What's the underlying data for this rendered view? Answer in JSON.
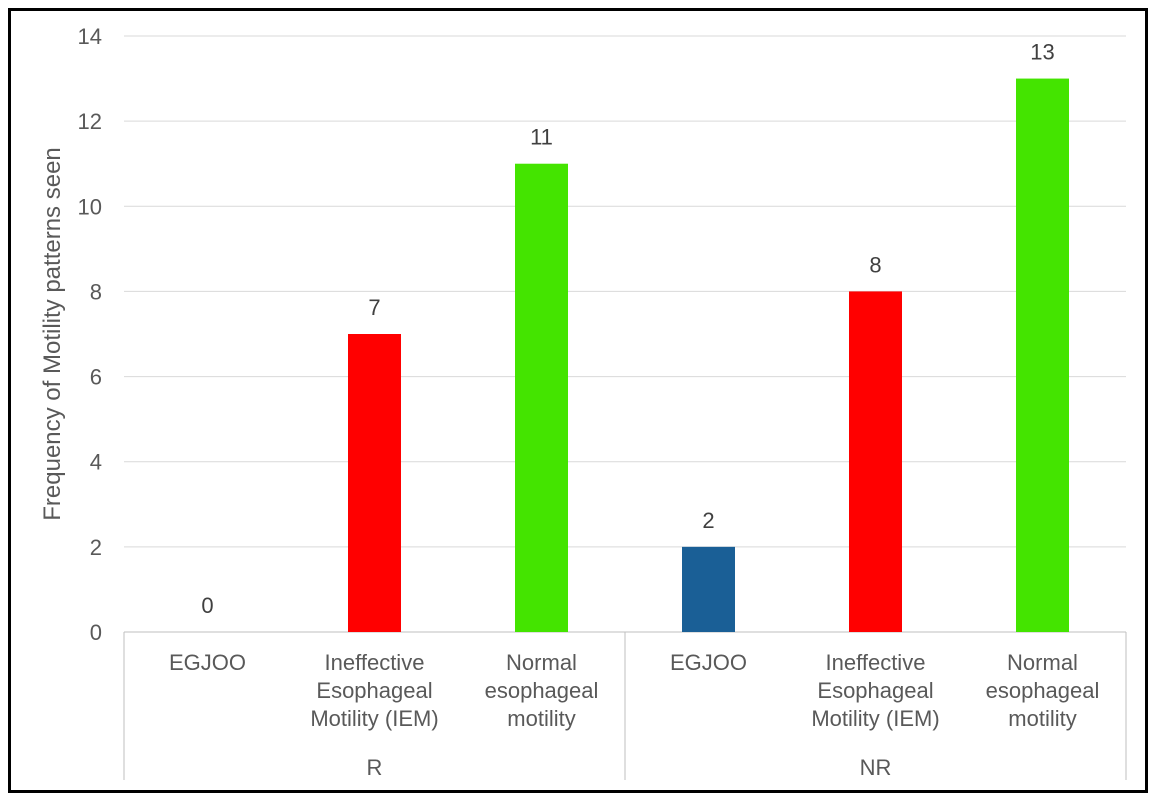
{
  "chart_data": {
    "type": "bar",
    "ylabel": "Frequency of Motility patterns seen",
    "xlabel": "",
    "ylim": [
      0,
      14
    ],
    "yticks": [
      0,
      2,
      4,
      6,
      8,
      10,
      12,
      14
    ],
    "grid": true,
    "groups": [
      {
        "name": "R",
        "bars": [
          {
            "label_lines": [
              "EGJOO"
            ],
            "value": 0,
            "color": "#1a5f96"
          },
          {
            "label_lines": [
              "Ineffective",
              "Esophageal",
              "Motility (IEM)"
            ],
            "value": 7,
            "color": "#ff0000"
          },
          {
            "label_lines": [
              "Normal",
              "esophageal",
              "motility"
            ],
            "value": 11,
            "color": "#44e400"
          }
        ]
      },
      {
        "name": "NR",
        "bars": [
          {
            "label_lines": [
              "EGJOO"
            ],
            "value": 2,
            "color": "#1a5f96"
          },
          {
            "label_lines": [
              "Ineffective",
              "Esophageal",
              "Motility (IEM)"
            ],
            "value": 8,
            "color": "#ff0000"
          },
          {
            "label_lines": [
              "Normal",
              "esophageal",
              "motility"
            ],
            "value": 13,
            "color": "#44e400"
          }
        ]
      }
    ]
  }
}
